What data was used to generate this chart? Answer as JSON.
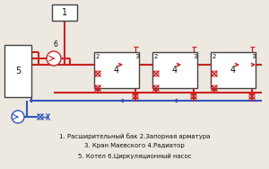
{
  "bg_color": "#ede8e0",
  "line_red": "#cc2222",
  "line_blue": "#3355bb",
  "box_fill": "#ffffff",
  "box_edge": "#444444",
  "text_color": "#111111",
  "caption_lines": [
    "1. Расширительный бак 2.Запорная арматура",
    "3. Кран Маевского 4.Радиатор",
    "5. Котел 6.Циркуляционный насос"
  ]
}
